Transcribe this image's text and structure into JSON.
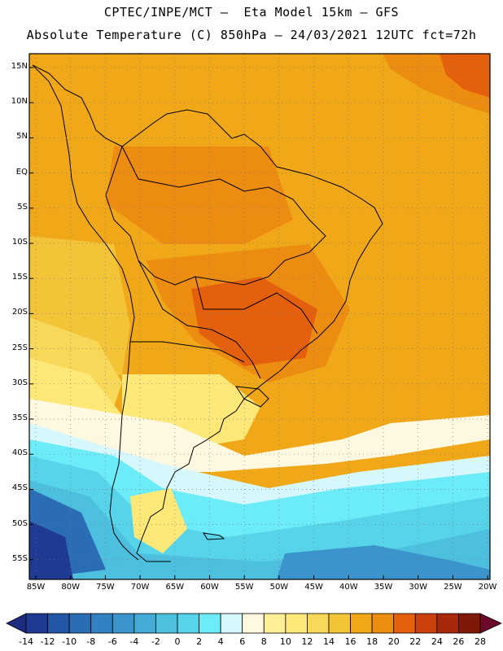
{
  "header": {
    "line1": "CPTEC/INPE/MCT –  Eta Model 15km – GFS",
    "line2": "Absolute Temperature (C) 850hPa – 24/03/2021 12UTC fct=72h"
  },
  "map": {
    "lat_labels": [
      "15N",
      "10N",
      "5N",
      "EQ",
      "5S",
      "10S",
      "15S",
      "20S",
      "25S",
      "30S",
      "35S",
      "40S",
      "45S",
      "50S",
      "55S"
    ],
    "lon_labels": [
      "85W",
      "80W",
      "75W",
      "70W",
      "65W",
      "60W",
      "55W",
      "50W",
      "45W",
      "40W",
      "35W",
      "30W",
      "25W",
      "20W"
    ],
    "background_color": "#f0a818"
  },
  "colorbar": {
    "labels": [
      "-14",
      "-12",
      "-10",
      "-8",
      "-6",
      "-4",
      "-2",
      "0",
      "2",
      "4",
      "6",
      "8",
      "10",
      "12",
      "14",
      "16",
      "18",
      "20",
      "22",
      "24",
      "26",
      "28"
    ],
    "colors": [
      "#1f3a93",
      "#2456a6",
      "#2a6db5",
      "#3381c2",
      "#3b95cc",
      "#44aad6",
      "#4cc0de",
      "#58d4ea",
      "#6cecf8",
      "#d6f8fc",
      "#fff8e0",
      "#fff098",
      "#fde878",
      "#f8d858",
      "#f4c438",
      "#f0a818",
      "#ec8c10",
      "#e4600c",
      "#cc400c",
      "#a8280c",
      "#801808"
    ],
    "under_color": "#1c2a80",
    "over_color": "#6a0a28"
  }
}
